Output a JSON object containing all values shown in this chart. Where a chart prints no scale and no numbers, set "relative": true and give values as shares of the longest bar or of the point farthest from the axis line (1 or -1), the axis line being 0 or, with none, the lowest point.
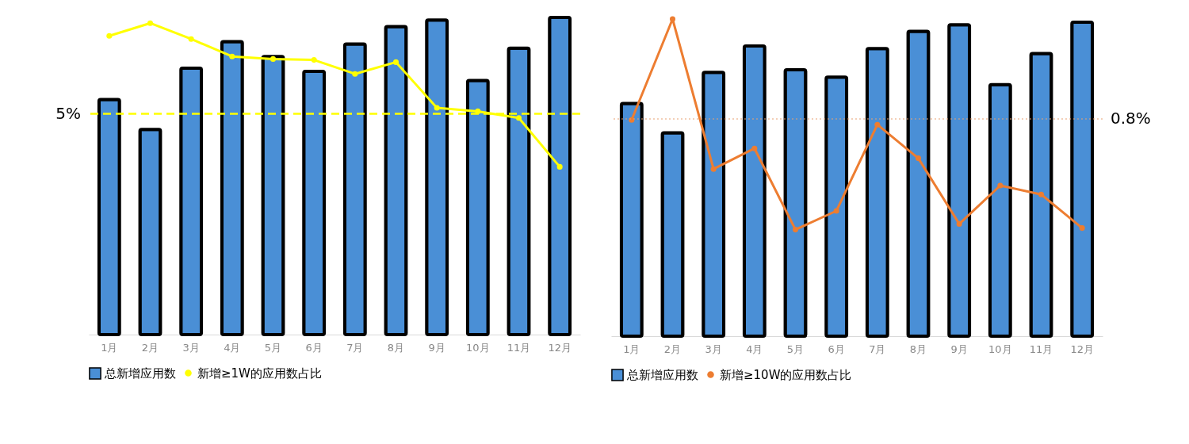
{
  "chart_data": [
    {
      "type": "bar",
      "relative": true,
      "legend": "bottom",
      "categories": [
        "1月",
        "2月",
        "3月",
        "4月",
        "5月",
        "6月",
        "7月",
        "8月",
        "9月",
        "10月",
        "11月",
        "12月"
      ],
      "series": [
        {
          "name": "总新增应用数",
          "color": "#4a8fd6",
          "values": [
            0.741,
            0.647,
            0.84,
            0.924,
            0.877,
            0.83,
            0.916,
            0.971,
            0.992,
            0.801,
            0.903,
            1.0
          ]
        },
        {
          "name": "新增≥1W的应用数占比",
          "type": "line",
          "color": "#ffff00",
          "marker": "circle",
          "values": [
            0.942,
            0.982,
            0.932,
            0.877,
            0.869,
            0.866,
            0.822,
            0.859,
            0.715,
            0.704,
            0.683,
            0.529
          ]
        }
      ],
      "ref_lines": [
        {
          "axis": "y",
          "value": 0.696,
          "label": null,
          "color": "#ffff00",
          "line_style": "dashed"
        }
      ],
      "annotations": [
        "5%"
      ]
    },
    {
      "type": "bar",
      "relative": true,
      "legend": "bottom",
      "categories": [
        "1月",
        "2月",
        "3月",
        "4月",
        "5月",
        "6月",
        "7月",
        "8月",
        "9月",
        "10月",
        "11月",
        "12月"
      ],
      "series": [
        {
          "name": "总新增应用数",
          "color": "#4a8fd6",
          "values": [
            0.734,
            0.641,
            0.832,
            0.915,
            0.84,
            0.817,
            0.907,
            0.961,
            0.982,
            0.793,
            0.891,
            0.99
          ]
        },
        {
          "name": "新增≥10W的应用数占比",
          "type": "line",
          "color": "#ed7d31",
          "marker": "circle",
          "values": [
            0.682,
            1.0,
            0.527,
            0.592,
            0.336,
            0.395,
            0.667,
            0.561,
            0.354,
            0.475,
            0.447,
            0.341
          ]
        }
      ],
      "ref_lines": [
        {
          "axis": "y",
          "value": 0.685,
          "label": null,
          "color": "#e8a070",
          "line_style": "dotted"
        }
      ],
      "annotations": [
        "0.8%"
      ]
    }
  ]
}
